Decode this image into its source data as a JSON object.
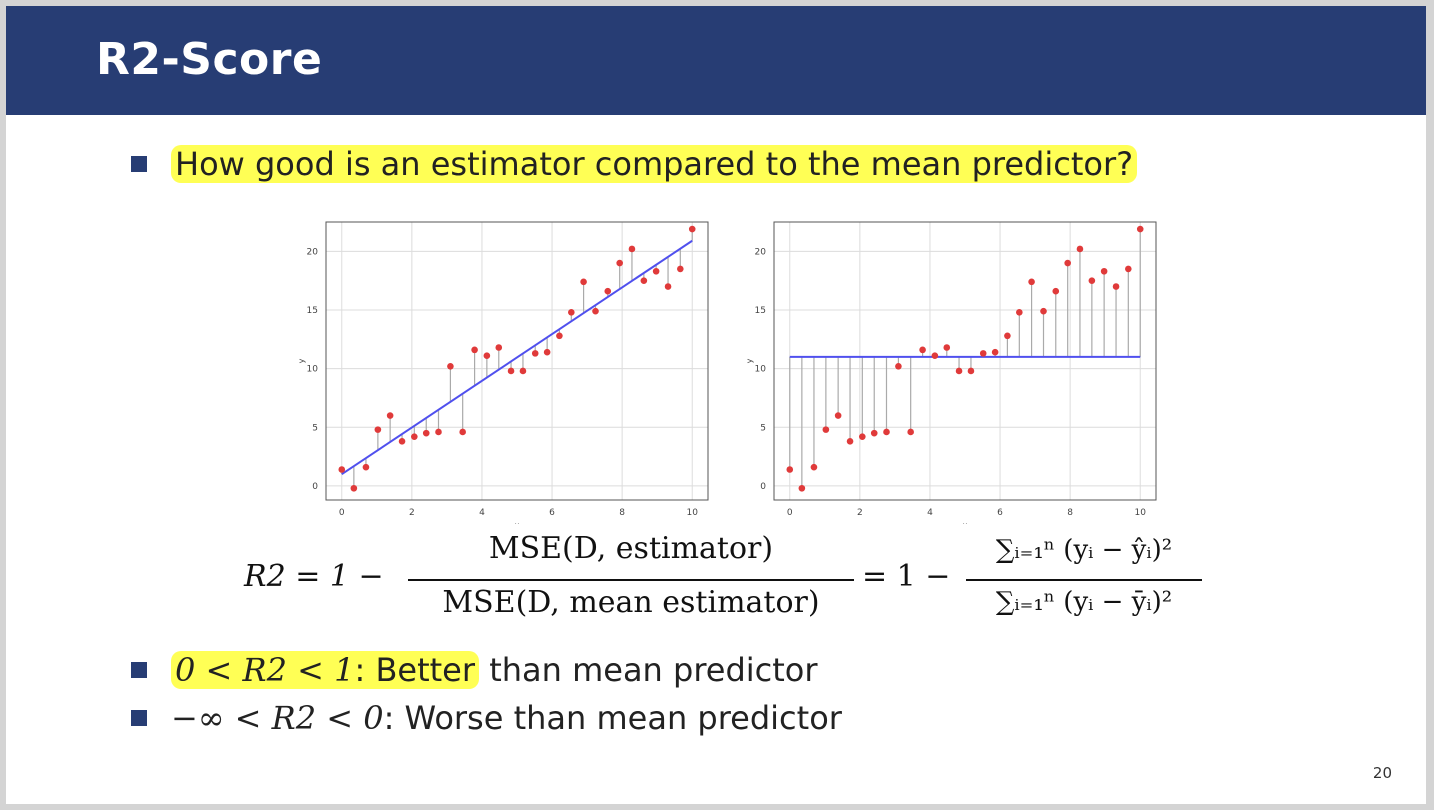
{
  "slide": {
    "title": "R2-Score",
    "bullet1": "How good is an estimator compared to the mean predictor?",
    "bullet2_highlight_math": "0 < R2 < 1",
    "bullet2_highlight_text": ": Better",
    "bullet2_rest": " than mean predictor",
    "bullet3_math": "−∞ < R2 < 0",
    "bullet3_text": ": Worse than mean predictor",
    "page_number": "20"
  },
  "formula": {
    "lhs": "R2 = 1 −",
    "frac1_num": "MSE(D, estimator)",
    "frac1_den": "MSE(D, mean estimator)",
    "mid": "= 1 −",
    "frac2_num": "∑ᵢ₌₁ⁿ (yᵢ − ŷᵢ)²",
    "frac2_den": "∑ᵢ₌₁ⁿ (yᵢ − ȳᵢ)²"
  },
  "colors": {
    "title_bar": "#273d74",
    "highlight": "#ffff55",
    "points": "#e03a3a",
    "fit_line": "#5050ee",
    "residual": "#aaaaaa"
  },
  "chart_data": [
    {
      "type": "scatter",
      "name": "linear-fit",
      "xlabel": "x",
      "ylabel": "y",
      "xlim": [
        -0.45,
        10.45
      ],
      "ylim": [
        -1.2,
        22.5
      ],
      "xticks": [
        0,
        2,
        4,
        6,
        8,
        10
      ],
      "yticks": [
        0,
        5,
        10,
        15,
        20
      ],
      "grid": true,
      "x": [
        0,
        0.345,
        0.69,
        1.03,
        1.38,
        1.72,
        2.07,
        2.41,
        2.76,
        3.1,
        3.45,
        3.79,
        4.14,
        4.48,
        4.83,
        5.17,
        5.52,
        5.86,
        6.21,
        6.55,
        6.9,
        7.24,
        7.59,
        7.93,
        8.28,
        8.62,
        8.97,
        9.31,
        9.66,
        10.0
      ],
      "y": [
        1.4,
        -0.2,
        1.6,
        4.8,
        6.0,
        3.8,
        4.2,
        4.5,
        4.6,
        10.2,
        4.6,
        11.6,
        11.1,
        11.8,
        9.8,
        9.8,
        11.3,
        11.4,
        12.8,
        14.8,
        17.4,
        14.9,
        16.6,
        19.0,
        20.2,
        17.5,
        18.3,
        17.0,
        18.5,
        21.9
      ],
      "fit_line": {
        "x": [
          0,
          10
        ],
        "y": [
          1.0,
          20.9
        ]
      }
    },
    {
      "type": "scatter",
      "name": "mean-predictor",
      "xlabel": "x",
      "ylabel": "y",
      "xlim": [
        -0.45,
        10.45
      ],
      "ylim": [
        -1.2,
        22.5
      ],
      "xticks": [
        0,
        2,
        4,
        6,
        8,
        10
      ],
      "yticks": [
        0,
        5,
        10,
        15,
        20
      ],
      "grid": true,
      "x": [
        0,
        0.345,
        0.69,
        1.03,
        1.38,
        1.72,
        2.07,
        2.41,
        2.76,
        3.1,
        3.45,
        3.79,
        4.14,
        4.48,
        4.83,
        5.17,
        5.52,
        5.86,
        6.21,
        6.55,
        6.9,
        7.24,
        7.59,
        7.93,
        8.28,
        8.62,
        8.97,
        9.31,
        9.66,
        10.0
      ],
      "y": [
        1.4,
        -0.2,
        1.6,
        4.8,
        6.0,
        3.8,
        4.2,
        4.5,
        4.6,
        10.2,
        4.6,
        11.6,
        11.1,
        11.8,
        9.8,
        9.8,
        11.3,
        11.4,
        12.8,
        14.8,
        17.4,
        14.9,
        16.6,
        19.0,
        20.2,
        17.5,
        18.3,
        17.0,
        18.5,
        21.9
      ],
      "fit_line": {
        "x": [
          0,
          10
        ],
        "y": [
          11.0,
          11.0
        ]
      }
    }
  ]
}
